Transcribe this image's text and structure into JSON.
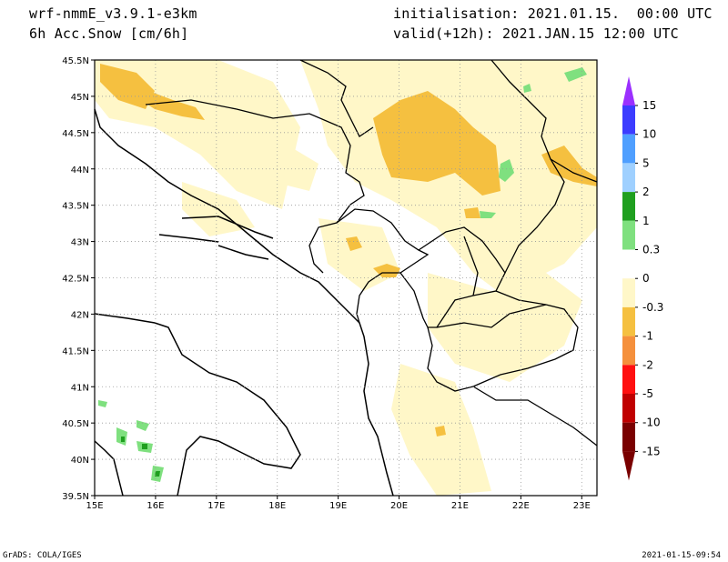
{
  "header": {
    "model": "wrf-nmmE_v3.9.1-e3km",
    "field": "6h Acc.Snow [cm/6h]",
    "init": "initialisation: 2021.01.15.  00:00 UTC",
    "valid": "valid(+12h): 2021.JAN.15 12:00 UTC"
  },
  "footer": {
    "left": "GrADS: COLA/IGES",
    "right": "2021-01-15-09:54"
  },
  "map": {
    "lat_labels": [
      "45.5N",
      "45N",
      "44.5N",
      "44N",
      "43.5N",
      "43N",
      "42.5N",
      "42N",
      "41.5N",
      "41N",
      "40.5N",
      "40N",
      "39.5N"
    ],
    "lon_labels": [
      "15E",
      "16E",
      "17E",
      "18E",
      "19E",
      "20E",
      "21E",
      "22E",
      "23E"
    ],
    "grid": true
  },
  "colorbar": {
    "labels": [
      "15",
      "10",
      "5",
      "2",
      "1",
      "0.3",
      "0",
      "-0.3",
      "-1",
      "-2",
      "-5",
      "-10",
      "-15"
    ],
    "colors": [
      "#9b30ff",
      "#3c3cff",
      "#4f9fff",
      "#9fd0ff",
      "#1f9f1f",
      "#7fe07f",
      "#ffffff",
      "#fff7c8",
      "#f5c040",
      "#f5903c",
      "#ff1010",
      "#c00000",
      "#7a0000"
    ]
  }
}
